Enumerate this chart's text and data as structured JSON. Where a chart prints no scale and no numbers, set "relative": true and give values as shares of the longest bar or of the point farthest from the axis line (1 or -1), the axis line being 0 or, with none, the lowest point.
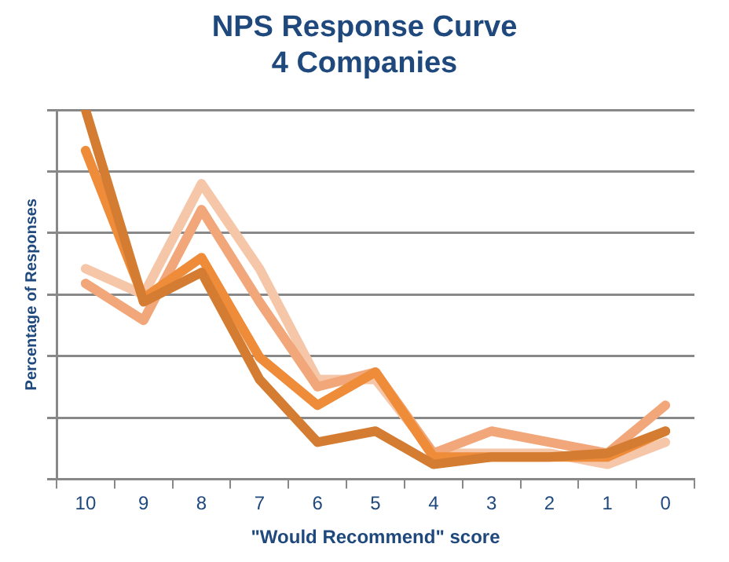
{
  "chart_data": {
    "type": "line",
    "title": "NPS Response Curve",
    "subtitle": "4 Companies",
    "xlabel": "\"Would Recommend\" score",
    "ylabel": "Percentage of Responses",
    "categories": [
      "10",
      "9",
      "8",
      "7",
      "6",
      "5",
      "4",
      "3",
      "2",
      "1",
      "0"
    ],
    "relative": true,
    "grid": "y",
    "line_style": "solid",
    "marker": "none",
    "series": [
      {
        "color": "#d47d32",
        "values": [
          1,
          0.48,
          0.56,
          0.27,
          0.1,
          0.13,
          0.04,
          0.06,
          0.06,
          0.07,
          0.13
        ]
      },
      {
        "color": "#ee8c3a",
        "values": [
          0.89,
          0.49,
          0.6,
          0.33,
          0.2,
          0.29,
          0.06,
          0.06,
          0.06,
          0.06,
          0.13
        ]
      },
      {
        "color": "#f2a77a",
        "values": [
          0.53,
          0.43,
          0.73,
          0.48,
          0.25,
          0.29,
          0.07,
          0.13,
          0.1,
          0.07,
          0.2
        ]
      },
      {
        "color": "#f6c6a8",
        "values": [
          0.57,
          0.5,
          0.8,
          0.57,
          0.27,
          0.27,
          0.07,
          0.07,
          0.07,
          0.04,
          0.1
        ]
      }
    ]
  }
}
